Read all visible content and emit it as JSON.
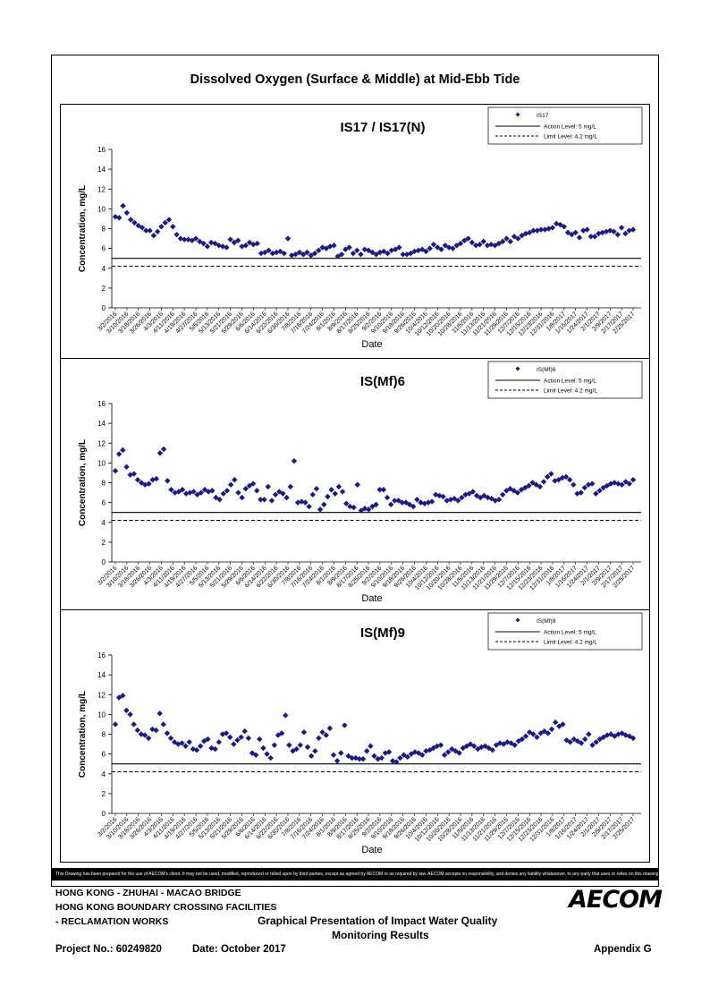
{
  "title": "Dissolved Oxygen (Surface & Middle) at Mid-Ebb Tide",
  "disclaimer": "This Drawing has been prepared for the use of AECOM's client. It may not be used, modified, reproduced or relied upon by third parties, except as agreed by AECOM or as required by law. AECOM accepts no responsibility, and denies any liability whatsoever, to any party that uses or relies on this drawing without AECOM's express written consent.",
  "footer": {
    "line1": "HONG KONG - ZHUHAI - MACAO BRIDGE",
    "line2": "HONG KONG BOUNDARY CROSSING FACILITIES",
    "line3": "- RECLAMATION WORKS",
    "graph_title_1": "Graphical Presentation of Impact Water Quality",
    "graph_title_2": "Monitoring Results",
    "project": "Project No.: 60249820",
    "date": "Date: October 2017",
    "appendix": "Appendix G",
    "logo": "AECOM"
  },
  "chart_data": [
    {
      "type": "scatter",
      "title": "IS17 / IS17(N)",
      "xlabel": "Date",
      "ylabel": "Concentration, mg/L",
      "ylim": [
        0,
        16
      ],
      "yticks": [
        0,
        2,
        4,
        6,
        8,
        10,
        12,
        14,
        16
      ],
      "x_tick_labels": [
        "3/2/2016",
        "3/10/2016",
        "3/18/2016",
        "3/26/2016",
        "4/3/2016",
        "4/11/2016",
        "4/19/2016",
        "4/27/2016",
        "5/5/2016",
        "5/13/2016",
        "5/21/2016",
        "5/29/2016",
        "6/6/2016",
        "6/14/2016",
        "6/22/2016",
        "6/30/2016",
        "7/8/2016",
        "7/16/2016",
        "7/24/2016",
        "8/1/2016",
        "8/9/2016",
        "8/17/2016",
        "8/25/2016",
        "9/2/2016",
        "9/10/2016",
        "9/18/2016",
        "9/26/2016",
        "10/4/2016",
        "10/12/2016",
        "10/20/2016",
        "10/28/2016",
        "11/5/2016",
        "11/13/2016",
        "11/21/2016",
        "11/29/2016",
        "12/7/2016",
        "12/15/2016",
        "12/23/2016",
        "12/31/2016",
        "1/8/2017",
        "1/16/2017",
        "1/24/2017",
        "2/1/2017",
        "2/9/2017",
        "2/17/2017",
        "2/25/2017"
      ],
      "x_range": [
        "3/2/2016",
        "3/2/2017"
      ],
      "legend_position": "top-right",
      "legend": [
        "IS17",
        "Action Level: 5 mg/L",
        "Limit Level: 4.2 mg/L"
      ],
      "action_level": 5,
      "limit_level": 4.2,
      "series": [
        {
          "name": "IS17",
          "values": [
            9.2,
            9.1,
            10.3,
            9.6,
            8.9,
            8.6,
            8.3,
            8.1,
            7.8,
            7.8,
            7.3,
            7.7,
            8.2,
            8.6,
            8.9,
            8.2,
            7.4,
            7.0,
            6.9,
            6.9,
            6.8,
            7.0,
            6.7,
            6.5,
            6.2,
            6.6,
            6.5,
            6.3,
            6.2,
            6.1,
            6.9,
            6.6,
            6.8,
            6.2,
            6.3,
            6.6,
            6.4,
            6.5,
            5.5,
            5.6,
            5.8,
            5.5,
            5.6,
            5.7,
            5.5,
            7.0,
            5.3,
            5.4,
            5.6,
            5.4,
            5.6,
            5.3,
            5.5,
            5.8,
            6.1,
            6.0,
            6.2,
            6.3,
            5.2,
            5.4,
            5.9,
            6.1,
            5.5,
            5.8,
            5.4,
            5.9,
            5.8,
            5.6,
            5.4,
            5.6,
            5.7,
            5.5,
            5.8,
            5.9,
            6.1,
            5.4,
            5.4,
            5.5,
            5.7,
            5.8,
            5.9,
            5.7,
            6.0,
            6.4,
            6.1,
            5.9,
            6.3,
            6.1,
            6.0,
            6.3,
            6.5,
            6.8,
            7.0,
            6.6,
            6.3,
            6.4,
            6.7,
            6.3,
            6.4,
            6.3,
            6.5,
            6.7,
            7.0,
            6.7,
            7.2,
            7.0,
            7.3,
            7.5,
            7.6,
            7.8,
            7.8,
            7.9,
            7.9,
            8.0,
            8.1,
            8.5,
            8.4,
            8.2,
            7.6,
            7.4,
            7.6,
            7.1,
            7.8,
            7.9,
            7.2,
            7.2,
            7.5,
            7.6,
            7.7,
            7.8,
            7.7,
            7.4,
            8.1,
            7.5,
            7.8,
            7.9
          ]
        }
      ]
    },
    {
      "type": "scatter",
      "title": "IS(Mf)6",
      "xlabel": "Date",
      "ylabel": "Concentration, mg/L",
      "ylim": [
        0,
        16
      ],
      "yticks": [
        0,
        2,
        4,
        6,
        8,
        10,
        12,
        14,
        16
      ],
      "x_tick_labels": [
        "3/2/2016",
        "3/10/2016",
        "3/18/2016",
        "3/26/2016",
        "4/3/2016",
        "4/11/2016",
        "4/19/2016",
        "4/27/2016",
        "5/5/2016",
        "5/13/2016",
        "5/21/2016",
        "5/29/2016",
        "6/6/2016",
        "6/14/2016",
        "6/22/2016",
        "6/30/2016",
        "7/8/2016",
        "7/16/2016",
        "7/24/2016",
        "8/1/2016",
        "8/9/2016",
        "8/17/2016",
        "8/25/2016",
        "9/2/2016",
        "9/10/2016",
        "9/18/2016",
        "9/26/2016",
        "10/4/2016",
        "10/12/2016",
        "10/20/2016",
        "10/28/2016",
        "11/5/2016",
        "11/13/2016",
        "11/21/2016",
        "11/29/2016",
        "12/7/2016",
        "12/15/2016",
        "12/23/2016",
        "12/31/2016",
        "1/8/2017",
        "1/16/2017",
        "1/24/2017",
        "2/1/2017",
        "2/9/2017",
        "2/17/2017",
        "2/25/2017"
      ],
      "x_range": [
        "3/2/2016",
        "3/2/2017"
      ],
      "legend_position": "top-right",
      "legend": [
        "IS(Mf)6",
        "Action Level: 5 mg/L",
        "Limit Level: 4.2 mg/L"
      ],
      "action_level": 5,
      "limit_level": 4.2,
      "series": [
        {
          "name": "IS(Mf)6",
          "values": [
            9.2,
            10.9,
            11.3,
            9.6,
            8.8,
            8.9,
            8.3,
            8.0,
            7.8,
            7.9,
            8.3,
            8.4,
            11.0,
            11.4,
            8.2,
            7.3,
            7.0,
            7.1,
            7.3,
            6.9,
            7.0,
            7.1,
            6.8,
            7.0,
            7.3,
            7.1,
            7.2,
            6.5,
            6.3,
            6.9,
            7.2,
            7.8,
            8.3,
            7.0,
            6.5,
            7.4,
            7.7,
            7.9,
            7.2,
            6.3,
            6.3,
            7.6,
            6.2,
            6.8,
            7.1,
            6.9,
            6.5,
            7.6,
            10.2,
            6.0,
            6.1,
            6.0,
            5.6,
            6.8,
            7.4,
            5.3,
            5.8,
            6.6,
            7.3,
            6.9,
            7.6,
            7.1,
            5.9,
            5.6,
            5.5,
            7.8,
            5.2,
            5.4,
            5.3,
            5.6,
            5.8,
            7.3,
            7.3,
            6.5,
            5.8,
            6.2,
            6.2,
            6.0,
            6.0,
            5.8,
            5.6,
            6.3,
            6.0,
            5.9,
            6.0,
            6.1,
            6.8,
            6.7,
            6.6,
            6.2,
            6.3,
            6.4,
            6.2,
            6.5,
            6.8,
            6.9,
            7.1,
            6.7,
            6.5,
            6.7,
            6.5,
            6.4,
            6.2,
            6.3,
            6.8,
            7.2,
            7.4,
            7.2,
            7.0,
            7.3,
            7.5,
            7.7,
            8.0,
            7.8,
            7.6,
            8.1,
            8.6,
            8.9,
            8.2,
            8.3,
            8.5,
            8.6,
            8.3,
            7.8,
            6.9,
            7.0,
            7.5,
            7.8,
            7.9,
            6.9,
            7.2,
            7.5,
            7.7,
            7.9,
            8.0,
            7.9,
            7.8,
            8.1,
            7.9,
            8.3
          ]
        }
      ]
    },
    {
      "type": "scatter",
      "title": "IS(Mf)9",
      "xlabel": "Date",
      "ylabel": "Concentration, mg/L",
      "ylim": [
        0,
        16
      ],
      "yticks": [
        0,
        2,
        4,
        6,
        8,
        10,
        12,
        14,
        16
      ],
      "x_tick_labels": [
        "3/2/2016",
        "3/10/2016",
        "3/18/2016",
        "3/26/2016",
        "4/3/2016",
        "4/11/2016",
        "4/19/2016",
        "4/27/2016",
        "5/5/2016",
        "5/13/2016",
        "5/21/2016",
        "5/29/2016",
        "6/6/2016",
        "6/14/2016",
        "6/22/2016",
        "6/30/2016",
        "7/8/2016",
        "7/16/2016",
        "7/24/2016",
        "8/1/2016",
        "8/9/2016",
        "8/17/2016",
        "8/25/2016",
        "9/2/2016",
        "9/10/2016",
        "9/18/2016",
        "9/26/2016",
        "10/4/2016",
        "10/12/2016",
        "10/20/2016",
        "10/28/2016",
        "11/5/2016",
        "11/13/2016",
        "11/21/2016",
        "11/29/2016",
        "12/7/2016",
        "12/15/2016",
        "12/23/2016",
        "12/31/2016",
        "1/8/2017",
        "1/16/2017",
        "1/24/2017",
        "2/1/2017",
        "2/9/2017",
        "2/17/2017",
        "2/25/2017"
      ],
      "x_range": [
        "3/2/2016",
        "3/2/2017"
      ],
      "legend_position": "top-right",
      "legend": [
        "IS(Mf)9",
        "Action Level: 5 mg/L",
        "Limit Level: 4.2 mg/L"
      ],
      "action_level": 5,
      "limit_level": 4.2,
      "series": [
        {
          "name": "IS(Mf)9",
          "values": [
            9.0,
            11.7,
            11.9,
            10.4,
            10.0,
            9.0,
            8.4,
            8.0,
            7.9,
            7.6,
            8.5,
            8.4,
            10.1,
            9.0,
            8.1,
            7.6,
            7.2,
            7.0,
            7.1,
            6.8,
            7.2,
            6.5,
            6.4,
            6.8,
            7.3,
            7.5,
            6.6,
            6.5,
            7.2,
            8.0,
            8.1,
            7.7,
            7.0,
            7.4,
            7.7,
            8.3,
            7.6,
            6.1,
            5.9,
            7.5,
            6.6,
            6.0,
            5.6,
            6.9,
            7.9,
            8.1,
            9.9,
            6.9,
            6.3,
            6.5,
            6.9,
            8.2,
            6.7,
            5.8,
            6.3,
            7.6,
            8.2,
            7.9,
            8.6,
            5.9,
            5.3,
            6.1,
            8.9,
            5.8,
            5.6,
            5.6,
            5.5,
            5.5,
            6.3,
            6.8,
            5.8,
            5.5,
            5.6,
            6.1,
            6.2,
            5.3,
            5.2,
            5.6,
            5.9,
            5.7,
            6.0,
            6.2,
            6.1,
            5.9,
            6.3,
            6.4,
            6.6,
            6.8,
            6.9,
            5.9,
            6.2,
            6.5,
            6.3,
            6.1,
            6.6,
            6.8,
            7.0,
            6.8,
            6.5,
            6.7,
            6.8,
            6.6,
            6.4,
            6.9,
            7.1,
            7.0,
            7.2,
            7.1,
            6.9,
            7.3,
            7.5,
            7.8,
            8.2,
            8.0,
            7.7,
            8.1,
            8.3,
            8.1,
            8.5,
            9.2,
            8.8,
            9.0,
            7.4,
            7.2,
            7.5,
            7.3,
            7.1,
            7.5,
            8.0,
            6.9,
            7.2,
            7.5,
            7.7,
            7.9,
            8.0,
            7.8,
            8.0,
            8.1,
            7.9,
            7.8,
            7.6
          ]
        }
      ]
    }
  ]
}
